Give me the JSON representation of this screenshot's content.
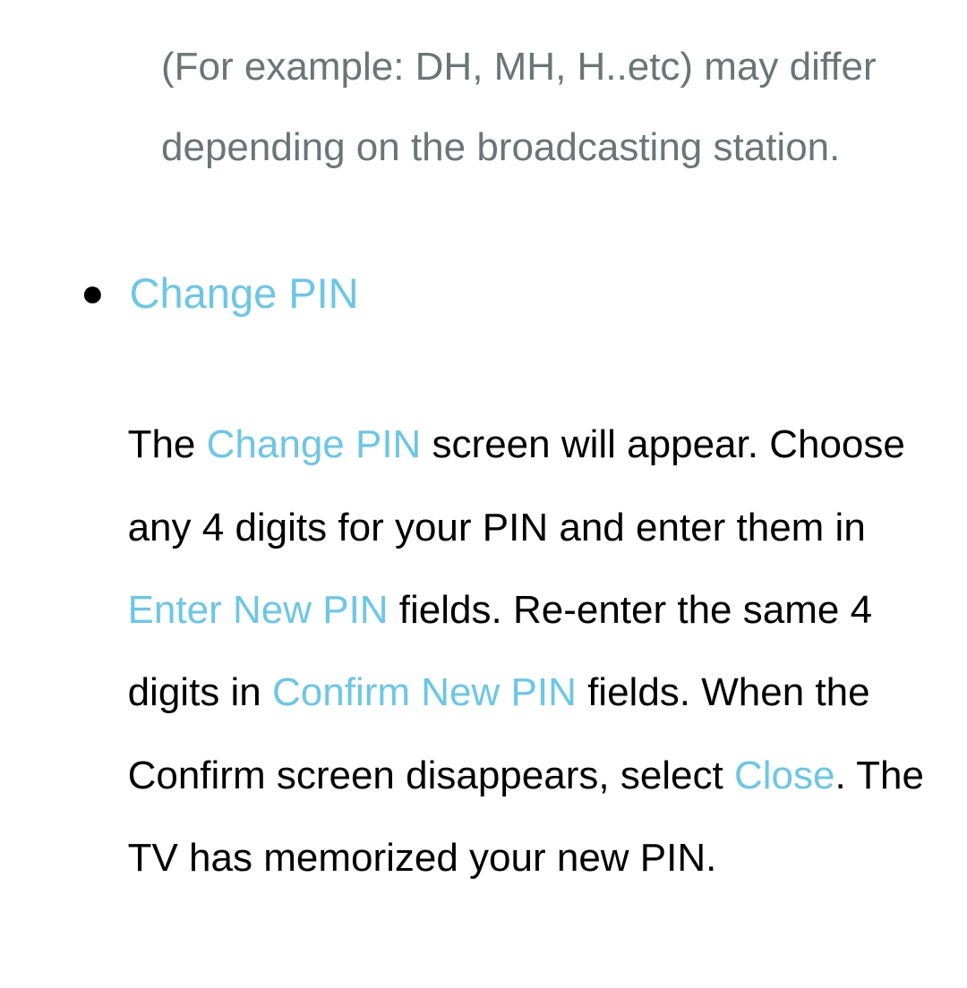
{
  "document": {
    "introText": "(For example: DH, MH, H..etc) may differ depending on the broadcasting station.",
    "listItem": {
      "title": "Change PIN",
      "description": {
        "part1": "The ",
        "highlight1": "Change PIN",
        "part2": " screen will appear. Choose any 4 digits for your PIN and enter them in ",
        "highlight2": "Enter New PIN",
        "part3": " fields. Re-enter the same 4 digits in ",
        "highlight3": "Confirm New PIN",
        "part4": " fields. When the Confirm screen disappears, select ",
        "highlight4": "Close",
        "part5": ". The TV has memorized your new PIN."
      }
    },
    "colors": {
      "highlight": "#69c8e8",
      "introText": "#6b7575",
      "bodyText": "#000000",
      "background": "#ffffff"
    }
  }
}
